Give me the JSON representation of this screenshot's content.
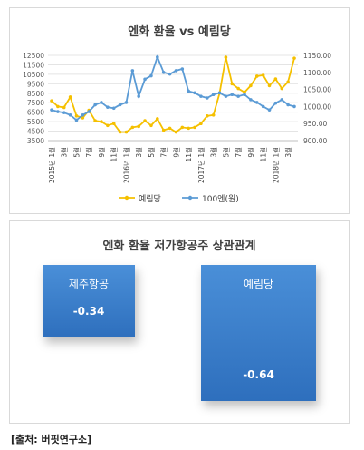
{
  "chart_data": [
    {
      "type": "line",
      "title": "엔화 환율 vs 예림당",
      "x_tick_labels": [
        "2015년 1월",
        "3월",
        "5월",
        "7월",
        "9월",
        "11월",
        "2016년 1월",
        "3월",
        "5월",
        "7월",
        "9월",
        "11월",
        "2017년 1월",
        "3월",
        "5월",
        "7월",
        "9월",
        "11월",
        "2018년 1월",
        "3월"
      ],
      "y_left": {
        "ticks": [
          3500,
          4500,
          5500,
          6500,
          7500,
          8500,
          9500,
          10500,
          11500,
          12500
        ],
        "tick_labels": [
          "3500",
          "4500",
          "5500",
          "6500",
          "7500",
          "8500",
          "9500",
          "10500",
          "11500",
          "12500"
        ],
        "range": [
          3500,
          12500
        ]
      },
      "y_right": {
        "ticks": [
          900,
          950,
          1000,
          1050,
          1100,
          1150
        ],
        "tick_labels": [
          "900.00",
          "950.00",
          "1000.00",
          "1050.00",
          "1100.00",
          "1150.00"
        ],
        "range": [
          900,
          1150
        ]
      },
      "series": [
        {
          "name": "예림당",
          "axis": "left",
          "color": "#f5c000",
          "values": [
            7700,
            7100,
            7000,
            8100,
            6100,
            5900,
            6700,
            5600,
            5500,
            5100,
            5300,
            4400,
            4400,
            4900,
            5000,
            5600,
            5100,
            5800,
            4600,
            4800,
            4400,
            4900,
            4800,
            4900,
            5300,
            6100,
            6200,
            8500,
            12300,
            9500,
            9000,
            8600,
            9300,
            10300,
            10400,
            9300,
            10000,
            9000,
            9700,
            12200
          ],
          "labels_visible": false
        },
        {
          "name": "100엔(원)",
          "axis": "right",
          "color": "#5b9bd5",
          "values": [
            990,
            985,
            982,
            975,
            960,
            975,
            985,
            1005,
            1012,
            998,
            995,
            1005,
            1012,
            1105,
            1030,
            1080,
            1090,
            1145,
            1100,
            1095,
            1105,
            1110,
            1045,
            1040,
            1030,
            1025,
            1035,
            1040,
            1030,
            1035,
            1030,
            1035,
            1020,
            1012,
            1000,
            990,
            1010,
            1020,
            1005,
            1000
          ],
          "labels_visible": false
        }
      ],
      "legend": {
        "position": "bottom",
        "entries": [
          "예림당",
          "100엔(원)"
        ]
      },
      "grid": true
    },
    {
      "type": "bar",
      "title": "엔화 환율 저가항공주 상관관계",
      "categories": [
        "제주항공",
        "예림당"
      ],
      "values": [
        -0.34,
        -0.64
      ],
      "value_labels": [
        "-0.34",
        "-0.64"
      ],
      "color": "#3c7fcb"
    }
  ],
  "source": "[출처: 버핏연구소]"
}
